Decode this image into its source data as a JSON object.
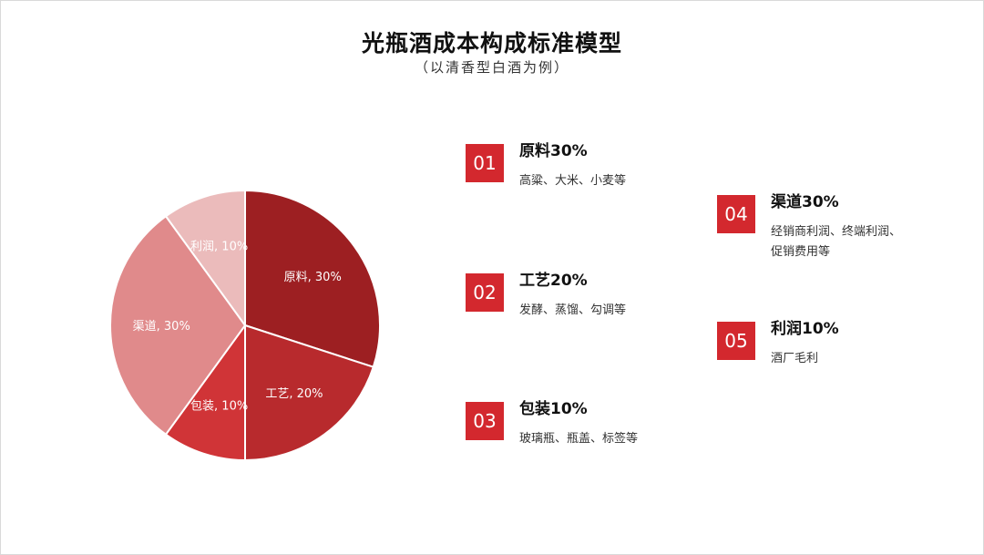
{
  "title": "光瓶酒成本构成标准模型",
  "subtitle": "（以清香型白酒为例）",
  "chart_data": {
    "type": "pie",
    "slices": [
      {
        "label": "原料",
        "value": 30,
        "text": "原料, 30%",
        "color": "#9d1f22"
      },
      {
        "label": "工艺",
        "value": 20,
        "text": "工艺, 20%",
        "color": "#b82a2d"
      },
      {
        "label": "包装",
        "value": 10,
        "text": "包装, 10%",
        "color": "#d03437"
      },
      {
        "label": "渠道",
        "value": 30,
        "text": "渠道, 30%",
        "color": "#e08a8b"
      },
      {
        "label": "利润",
        "value": 10,
        "text": "利润, 10%",
        "color": "#ebbbbb"
      }
    ]
  },
  "legend_items": [
    {
      "num": "01",
      "title": "原料30%",
      "desc": [
        "高粱、大米、小麦等"
      ]
    },
    {
      "num": "02",
      "title": "工艺20%",
      "desc": [
        "发酵、蒸馏、勾调等"
      ]
    },
    {
      "num": "03",
      "title": "包装10%",
      "desc": [
        "玻璃瓶、瓶盖、标签等"
      ]
    },
    {
      "num": "04",
      "title": "渠道30%",
      "desc": [
        "经销商利润、终端利润、",
        "促销费用等"
      ]
    },
    {
      "num": "05",
      "title": "利润10%",
      "desc": [
        "酒厂毛利"
      ]
    }
  ]
}
